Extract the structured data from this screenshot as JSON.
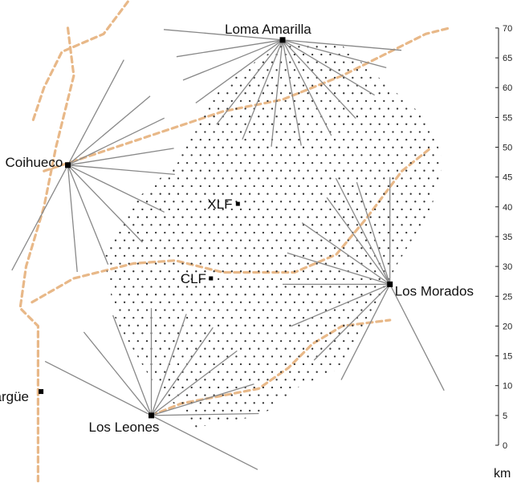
{
  "map": {
    "array_boundary_vertices_km": [
      [
        -17.5,
        47.5
      ],
      [
        -13.5,
        56.5
      ],
      [
        -7.5,
        62.5
      ],
      [
        0.5,
        67.5
      ],
      [
        9.5,
        67.5
      ],
      [
        17.5,
        60.5
      ],
      [
        24.5,
        54.5
      ],
      [
        27.0,
        47.5
      ],
      [
        25.0,
        40.0
      ],
      [
        19.0,
        30.0
      ],
      [
        15.0,
        22.0
      ],
      [
        10.0,
        13.0
      ],
      [
        3.0,
        10.0
      ],
      [
        -3.5,
        5.0
      ],
      [
        -14.5,
        3.0
      ],
      [
        -22.0,
        11.0
      ],
      [
        -28.0,
        21.0
      ],
      [
        -30.0,
        32.0
      ],
      [
        -26.0,
        40.0
      ]
    ],
    "grid_spacing_km": 1.5,
    "colors": {
      "detector_dot": "#333333",
      "fov_line": "#888888",
      "road": "#e8b888",
      "station_marker": "#000000"
    },
    "fluorescence_sites": [
      {
        "name": "Loma Amarilla",
        "x_km": 0,
        "y_km": 68,
        "fov_angle_deg": 175,
        "ray_angles_deg": [
          189,
          202,
          216,
          232,
          248,
          264,
          280,
          297,
          313,
          329,
          345
        ]
      },
      {
        "name": "Coihueco",
        "x_km": -36,
        "y_km": 47,
        "fov_angle_deg": 62,
        "ray_angles_deg": [
          9,
          26,
          40,
          355,
          334,
          314,
          292,
          275
        ]
      },
      {
        "name": "Los Morados",
        "x_km": 18,
        "y_km": 27,
        "fov_angle_deg": 117,
        "ray_angles_deg": [
          90,
          108,
          126,
          145,
          163,
          180,
          203,
          225,
          243
        ]
      },
      {
        "name": "Los Leones",
        "x_km": -22,
        "y_km": 5,
        "fov_angle_deg": 153,
        "ray_angles_deg": [
          90,
          71,
          55,
          37,
          17,
          1,
          111,
          129
        ]
      }
    ],
    "laser_facilities": [
      {
        "name": "XLF",
        "x_km": -7.5,
        "y_km": 40.5
      },
      {
        "name": "CLF",
        "x_km": -12,
        "y_km": 28
      }
    ],
    "towns": [
      {
        "name": "Malargüe",
        "x_km": -40.5,
        "y_km": 9
      }
    ],
    "roads_km": [
      [
        [
          -36,
          70
        ],
        [
          -35,
          62
        ],
        [
          -38,
          50
        ],
        [
          -40,
          40
        ],
        [
          -43,
          30
        ],
        [
          -44,
          23
        ],
        [
          -41,
          20
        ],
        [
          -41,
          10
        ],
        [
          -41,
          3
        ],
        [
          -41,
          -6
        ]
      ],
      [
        [
          -24,
          77
        ],
        [
          -30,
          69
        ],
        [
          -37,
          66
        ],
        [
          -40,
          60
        ],
        [
          -42,
          54
        ]
      ],
      [
        [
          -42,
          24
        ],
        [
          -35,
          28
        ],
        [
          -25,
          30.5
        ],
        [
          -18,
          31
        ],
        [
          -10,
          29
        ],
        [
          2,
          29
        ],
        [
          9,
          32
        ],
        [
          14,
          38
        ],
        [
          20,
          46
        ],
        [
          25,
          50
        ]
      ],
      [
        [
          -22,
          5
        ],
        [
          -17,
          7
        ],
        [
          -4,
          9.5
        ],
        [
          1,
          13
        ],
        [
          5,
          17
        ],
        [
          10,
          20
        ],
        [
          18,
          21
        ]
      ],
      [
        [
          -40,
          46
        ],
        [
          -25,
          51
        ],
        [
          -10,
          56
        ],
        [
          0,
          58
        ],
        [
          10,
          62
        ],
        [
          18,
          66
        ],
        [
          24,
          69
        ],
        [
          28,
          70
        ]
      ]
    ],
    "scale": {
      "unit": "km",
      "ticks": [
        0,
        5,
        10,
        15,
        20,
        25,
        30,
        35,
        40,
        45,
        50,
        55,
        60,
        65,
        70
      ]
    }
  }
}
